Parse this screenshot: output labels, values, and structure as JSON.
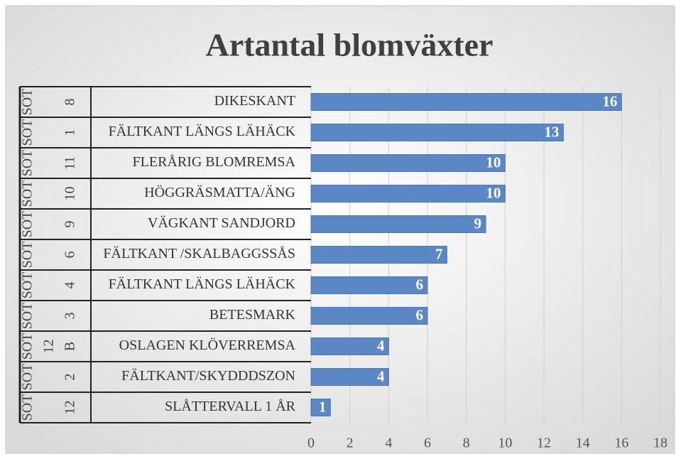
{
  "chart_data": {
    "type": "bar",
    "orientation": "horizontal",
    "title": "Artantal blomväxter",
    "categories": [
      "DIKESKANT",
      "FÄLTKANT LÄNGS LÄHÄCK",
      "FLERÅRIG BLOMREMSA",
      "HÖGGRÄSMATTA/ÄNG",
      "VÄGKANT SANDJORD",
      "FÄLTKANT /SKALBAGGSSÅS",
      "FÄLTKANT LÄNGS LÄHÄCK",
      "BETESMARK",
      "OSLAGEN KLÖVERREMSA",
      "FÄLTKANT/SKYDDDSZON",
      "SLÅTTERVALL 1 ÅR"
    ],
    "group_labels": [
      [
        "SÖT",
        "8"
      ],
      [
        "SÖT",
        "1"
      ],
      [
        "SÖT",
        "11"
      ],
      [
        "SÖT",
        "10"
      ],
      [
        "SÖT",
        "9"
      ],
      [
        "SÖT",
        "6"
      ],
      [
        "SÖT",
        "4"
      ],
      [
        "SÖT",
        "3"
      ],
      [
        "SÖT",
        "12",
        "B"
      ],
      [
        "SÖT",
        "2"
      ],
      [
        "SÖT",
        "12"
      ]
    ],
    "values": [
      16,
      13,
      10,
      10,
      9,
      7,
      6,
      6,
      4,
      4,
      1
    ],
    "color": "#5b87c5",
    "xlim": [
      0,
      18
    ],
    "xticks": [
      0,
      2,
      4,
      6,
      8,
      10,
      12,
      14,
      16,
      18
    ],
    "grid": true
  }
}
